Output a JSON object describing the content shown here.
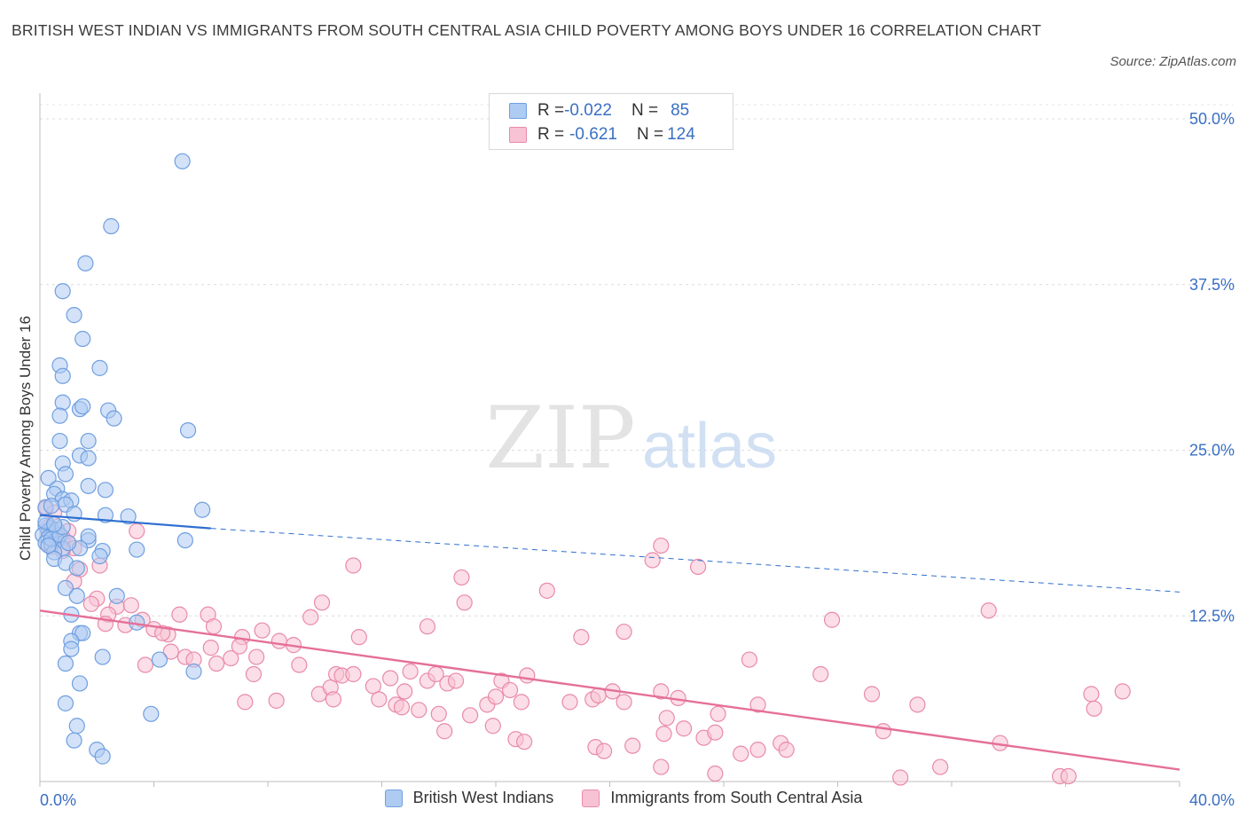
{
  "title": "BRITISH WEST INDIAN VS IMMIGRANTS FROM SOUTH CENTRAL ASIA CHILD POVERTY AMONG BOYS UNDER 16 CORRELATION CHART",
  "source": "Source: ZipAtlas.com",
  "watermark": {
    "zip": "ZIP",
    "atlas": "atlas"
  },
  "stats": [
    {
      "r_label": "R = ",
      "r_value": "-0.022",
      "n_label": "N = ",
      "n_value": "85",
      "fill": "#aecbf2",
      "stroke": "#6f9fe0"
    },
    {
      "r_label": "R = ",
      "r_value": "-0.621",
      "n_label": "N = ",
      "n_value": "124",
      "fill": "#f7c3d4",
      "stroke": "#e98aa9"
    }
  ],
  "legend": [
    {
      "label": "British West Indians",
      "fill": "#aecbf2",
      "stroke": "#6f9fe0"
    },
    {
      "label": "Immigrants from South Central Asia",
      "fill": "#f7c3d4",
      "stroke": "#e98aa9"
    }
  ],
  "chart_data": {
    "type": "scatter",
    "title": "BRITISH WEST INDIAN VS IMMIGRANTS FROM SOUTH CENTRAL ASIA CHILD POVERTY AMONG BOYS UNDER 16 CORRELATION CHART",
    "xlabel": "",
    "ylabel": "Child Poverty Among Boys Under 16",
    "xlim": [
      0,
      40
    ],
    "ylim": [
      0,
      50
    ],
    "x_tick_labels": [
      "0.0%",
      "40.0%"
    ],
    "y_ticks": [
      12.5,
      25,
      37.5,
      50
    ],
    "y_tick_labels": [
      "12.5%",
      "25.0%",
      "37.5%",
      "50.0%"
    ],
    "grid": true,
    "series": [
      {
        "name": "British West Indians",
        "color": "#6f9fe0",
        "fill": "#aecbf2",
        "trend": {
          "x": [
            0,
            6.0
          ],
          "y": [
            20.1,
            19.1
          ],
          "extend_to": 40,
          "extend_y": 14.3
        },
        "points": [
          [
            5.0,
            46.8
          ],
          [
            2.5,
            41.9
          ],
          [
            1.6,
            39.1
          ],
          [
            0.8,
            37.0
          ],
          [
            1.2,
            35.2
          ],
          [
            1.5,
            33.4
          ],
          [
            0.7,
            31.4
          ],
          [
            2.1,
            31.2
          ],
          [
            0.8,
            30.6
          ],
          [
            0.8,
            28.6
          ],
          [
            1.4,
            28.1
          ],
          [
            1.5,
            28.3
          ],
          [
            2.4,
            28.0
          ],
          [
            0.7,
            27.6
          ],
          [
            2.6,
            27.4
          ],
          [
            5.2,
            26.5
          ],
          [
            0.7,
            25.7
          ],
          [
            1.7,
            25.7
          ],
          [
            1.4,
            24.6
          ],
          [
            1.7,
            24.4
          ],
          [
            0.8,
            24.0
          ],
          [
            0.3,
            22.9
          ],
          [
            0.9,
            23.2
          ],
          [
            0.6,
            22.1
          ],
          [
            0.5,
            21.7
          ],
          [
            1.7,
            22.3
          ],
          [
            2.3,
            22.0
          ],
          [
            0.8,
            21.3
          ],
          [
            1.1,
            21.2
          ],
          [
            0.9,
            20.9
          ],
          [
            0.2,
            20.7
          ],
          [
            0.4,
            20.8
          ],
          [
            5.7,
            20.5
          ],
          [
            1.2,
            20.2
          ],
          [
            2.3,
            20.1
          ],
          [
            3.1,
            20.0
          ],
          [
            0.2,
            19.3
          ],
          [
            0.4,
            19.1
          ],
          [
            0.3,
            18.9
          ],
          [
            0.5,
            18.8
          ],
          [
            0.1,
            18.6
          ],
          [
            0.3,
            18.4
          ],
          [
            0.6,
            18.2
          ],
          [
            0.2,
            18.0
          ],
          [
            0.4,
            17.9
          ],
          [
            1.7,
            18.2
          ],
          [
            1.7,
            18.5
          ],
          [
            5.1,
            18.2
          ],
          [
            1.4,
            17.6
          ],
          [
            2.2,
            17.4
          ],
          [
            0.8,
            17.6
          ],
          [
            0.5,
            17.3
          ],
          [
            3.4,
            17.5
          ],
          [
            2.1,
            17.0
          ],
          [
            0.5,
            16.8
          ],
          [
            0.9,
            16.5
          ],
          [
            1.3,
            16.1
          ],
          [
            0.9,
            14.6
          ],
          [
            1.3,
            14.0
          ],
          [
            2.7,
            14.0
          ],
          [
            1.1,
            12.6
          ],
          [
            3.4,
            12.0
          ],
          [
            1.4,
            11.2
          ],
          [
            1.5,
            11.2
          ],
          [
            1.1,
            10.6
          ],
          [
            1.1,
            10.0
          ],
          [
            2.2,
            9.4
          ],
          [
            4.2,
            9.2
          ],
          [
            0.9,
            8.9
          ],
          [
            5.4,
            8.3
          ],
          [
            1.4,
            7.4
          ],
          [
            0.9,
            5.9
          ],
          [
            3.9,
            5.1
          ],
          [
            1.3,
            4.2
          ],
          [
            1.2,
            3.1
          ],
          [
            2.0,
            2.4
          ],
          [
            2.2,
            1.9
          ],
          [
            0.2,
            19.6
          ],
          [
            0.6,
            19.0
          ],
          [
            0.4,
            18.3
          ],
          [
            0.7,
            18.6
          ],
          [
            0.3,
            17.8
          ],
          [
            0.8,
            19.2
          ],
          [
            1.0,
            18.0
          ],
          [
            0.5,
            19.4
          ]
        ]
      },
      {
        "name": "Immigrants from South Central Asia",
        "color": "#e98aa9",
        "fill": "#f7c3d4",
        "trend": {
          "x": [
            0,
            40
          ],
          "y": [
            12.9,
            0.9
          ]
        },
        "points": [
          [
            0.2,
            20.6
          ],
          [
            0.5,
            20.3
          ],
          [
            0.3,
            19.2
          ],
          [
            1.0,
            18.9
          ],
          [
            0.6,
            18.6
          ],
          [
            0.8,
            18.4
          ],
          [
            1.0,
            18.0
          ],
          [
            0.4,
            17.7
          ],
          [
            1.2,
            17.6
          ],
          [
            0.8,
            17.4
          ],
          [
            3.4,
            18.9
          ],
          [
            2.1,
            16.3
          ],
          [
            1.4,
            16.0
          ],
          [
            1.2,
            15.1
          ],
          [
            11.0,
            16.3
          ],
          [
            14.8,
            15.4
          ],
          [
            17.8,
            14.4
          ],
          [
            21.5,
            16.7
          ],
          [
            21.8,
            17.8
          ],
          [
            23.1,
            16.2
          ],
          [
            2.0,
            13.8
          ],
          [
            1.8,
            13.4
          ],
          [
            2.7,
            13.2
          ],
          [
            3.2,
            13.3
          ],
          [
            2.4,
            12.6
          ],
          [
            2.3,
            11.9
          ],
          [
            3.6,
            12.2
          ],
          [
            3.0,
            11.8
          ],
          [
            4.0,
            11.5
          ],
          [
            4.5,
            11.1
          ],
          [
            4.3,
            11.2
          ],
          [
            4.9,
            12.6
          ],
          [
            5.9,
            12.6
          ],
          [
            6.1,
            11.7
          ],
          [
            7.8,
            11.4
          ],
          [
            7.1,
            10.9
          ],
          [
            8.4,
            10.6
          ],
          [
            9.5,
            12.4
          ],
          [
            9.9,
            13.5
          ],
          [
            11.2,
            10.9
          ],
          [
            13.6,
            11.7
          ],
          [
            14.9,
            13.5
          ],
          [
            19.0,
            10.9
          ],
          [
            20.5,
            11.3
          ],
          [
            27.8,
            12.2
          ],
          [
            33.3,
            12.9
          ],
          [
            3.7,
            8.8
          ],
          [
            4.6,
            9.8
          ],
          [
            5.1,
            9.4
          ],
          [
            5.4,
            9.2
          ],
          [
            6.0,
            10.1
          ],
          [
            6.2,
            8.9
          ],
          [
            6.7,
            9.3
          ],
          [
            7.0,
            10.2
          ],
          [
            7.6,
            9.4
          ],
          [
            7.5,
            8.1
          ],
          [
            8.9,
            10.3
          ],
          [
            9.1,
            8.8
          ],
          [
            10.4,
            8.1
          ],
          [
            10.6,
            8.0
          ],
          [
            11.0,
            8.1
          ],
          [
            12.3,
            7.8
          ],
          [
            12.8,
            6.8
          ],
          [
            13.0,
            8.3
          ],
          [
            13.6,
            7.6
          ],
          [
            13.9,
            8.1
          ],
          [
            14.3,
            7.4
          ],
          [
            14.6,
            7.6
          ],
          [
            16.2,
            7.6
          ],
          [
            17.1,
            8.0
          ],
          [
            19.4,
            6.2
          ],
          [
            19.6,
            6.5
          ],
          [
            20.1,
            6.8
          ],
          [
            21.8,
            6.8
          ],
          [
            22.4,
            6.3
          ],
          [
            24.9,
            9.2
          ],
          [
            27.4,
            8.1
          ],
          [
            7.2,
            6.0
          ],
          [
            8.3,
            6.1
          ],
          [
            9.8,
            6.6
          ],
          [
            10.2,
            7.1
          ],
          [
            10.3,
            6.2
          ],
          [
            11.7,
            7.2
          ],
          [
            11.9,
            6.2
          ],
          [
            12.5,
            5.8
          ],
          [
            12.7,
            5.6
          ],
          [
            13.3,
            5.4
          ],
          [
            14.0,
            5.1
          ],
          [
            15.1,
            5.0
          ],
          [
            15.7,
            5.8
          ],
          [
            16.0,
            6.4
          ],
          [
            16.5,
            6.9
          ],
          [
            16.9,
            6.0
          ],
          [
            18.6,
            6.0
          ],
          [
            20.5,
            6.0
          ],
          [
            22.0,
            4.8
          ],
          [
            23.8,
            5.1
          ],
          [
            25.2,
            5.8
          ],
          [
            29.2,
            6.6
          ],
          [
            30.8,
            5.8
          ],
          [
            36.9,
            6.6
          ],
          [
            37.0,
            5.5
          ],
          [
            38.0,
            6.8
          ],
          [
            14.2,
            3.8
          ],
          [
            15.9,
            4.2
          ],
          [
            16.7,
            3.2
          ],
          [
            17.0,
            3.0
          ],
          [
            19.5,
            2.6
          ],
          [
            19.8,
            2.3
          ],
          [
            20.8,
            2.7
          ],
          [
            21.9,
            3.6
          ],
          [
            22.6,
            4.0
          ],
          [
            23.3,
            3.3
          ],
          [
            23.7,
            3.7
          ],
          [
            24.6,
            2.1
          ],
          [
            25.2,
            2.4
          ],
          [
            26.0,
            2.9
          ],
          [
            26.2,
            2.4
          ],
          [
            29.6,
            3.8
          ],
          [
            31.6,
            1.1
          ],
          [
            33.7,
            2.9
          ],
          [
            21.8,
            1.1
          ],
          [
            23.7,
            0.6
          ],
          [
            30.2,
            0.3
          ],
          [
            35.8,
            0.4
          ],
          [
            36.1,
            0.4
          ]
        ]
      }
    ]
  }
}
